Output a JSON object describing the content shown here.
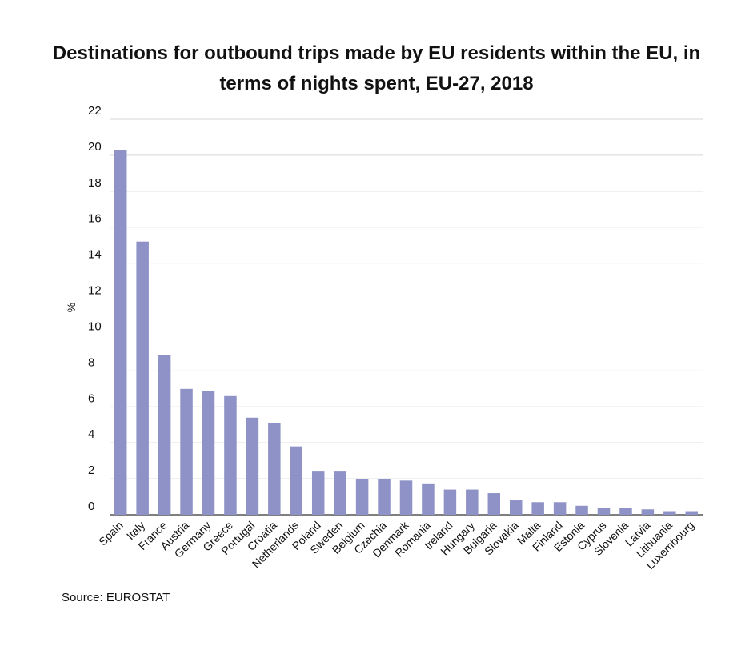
{
  "chart_data": {
    "type": "bar",
    "title": "Destinations for outbound trips made by EU residents within the EU, in terms of nights spent, EU-27, 2018",
    "xlabel": "",
    "ylabel": "%",
    "ylim": [
      0,
      22
    ],
    "yticks": [
      0,
      2,
      4,
      6,
      8,
      10,
      12,
      14,
      16,
      18,
      20,
      22
    ],
    "grid": true,
    "bar_color": "#8e92c6",
    "categories": [
      "Spain",
      "Italy",
      "France",
      "Austria",
      "Germany",
      "Greece",
      "Portugal",
      "Croatia",
      "Netherlands",
      "Poland",
      "Sweden",
      "Belgium",
      "Czechia",
      "Denmark",
      "Romania",
      "Ireland",
      "Hungary",
      "Bulgaria",
      "Slovakia",
      "Malta",
      "Finland",
      "Estonia",
      "Cyprus",
      "Slovenia",
      "Latvia",
      "Lithuania",
      "Luxembourg"
    ],
    "values": [
      20.3,
      15.2,
      8.9,
      7.0,
      6.9,
      6.6,
      5.4,
      5.1,
      3.8,
      2.4,
      2.4,
      2.0,
      2.0,
      1.9,
      1.7,
      1.4,
      1.4,
      1.2,
      0.8,
      0.7,
      0.7,
      0.5,
      0.4,
      0.4,
      0.3,
      0.2,
      0.2
    ]
  },
  "source": "Source: EUROSTAT"
}
